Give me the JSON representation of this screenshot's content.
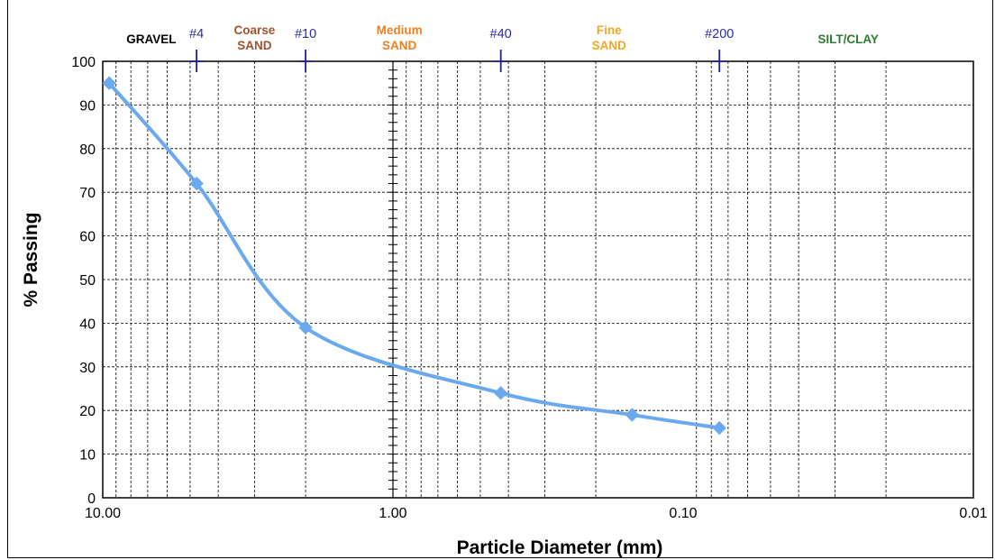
{
  "chart_data": {
    "type": "scatter",
    "title": "",
    "xlabel": "Particle Diameter (mm)",
    "ylabel": "% Passing",
    "x_scale": "log",
    "x_reversed": true,
    "xlim": [
      10,
      0.01
    ],
    "ylim": [
      0,
      100
    ],
    "x_ticks": [
      10,
      1,
      0.1,
      0.01
    ],
    "x_tick_labels": [
      "10.00",
      "1.00",
      "0.10",
      "0.01"
    ],
    "y_ticks": [
      0,
      10,
      20,
      30,
      40,
      50,
      60,
      70,
      80,
      90,
      100
    ],
    "grid": "dashed",
    "series": [
      {
        "x": [
          9.5,
          4.75,
          2.0,
          0.425,
          0.15,
          0.075
        ],
        "y": [
          95,
          72,
          39,
          24,
          19,
          16
        ],
        "color": "#6aa9ee",
        "marker": "diamond",
        "line": "smooth"
      }
    ],
    "sieves": [
      {
        "label": "#4",
        "x": 4.75
      },
      {
        "label": "#10",
        "x": 2.0
      },
      {
        "label": "#40",
        "x": 0.425
      },
      {
        "label": "#200",
        "x": 0.075
      }
    ],
    "zones": [
      {
        "lines": [
          "GRAVEL"
        ],
        "color": "#000000",
        "x": 6.8
      },
      {
        "lines": [
          "Coarse",
          "SAND"
        ],
        "color": "#a0522d",
        "x": 3.0
      },
      {
        "lines": [
          "Medium",
          "SAND"
        ],
        "color": "#f07f22",
        "x": 0.95
      },
      {
        "lines": [
          "Fine",
          "SAND"
        ],
        "color": "#f5a623",
        "x": 0.18
      },
      {
        "lines": [
          "SILT/CLAY"
        ],
        "color": "#2f7d32",
        "x": 0.027
      }
    ]
  }
}
